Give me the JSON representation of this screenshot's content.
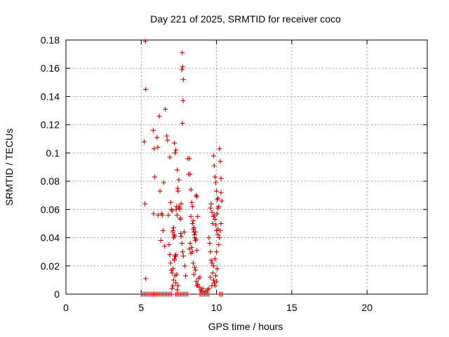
{
  "chart_data": {
    "type": "scatter",
    "title": "Day 221 of 2025, SRMTID for receiver coco",
    "xlabel": "GPS time / hours",
    "ylabel": "SRMTID / TECUs",
    "xlim": [
      0,
      24
    ],
    "ylim": [
      0,
      0.18
    ],
    "xticks": [
      0,
      5,
      10,
      15,
      20
    ],
    "xtick_labels": [
      "0",
      "5",
      "10",
      "15",
      "20"
    ],
    "yticks": [
      0,
      0.02,
      0.04,
      0.06,
      0.08,
      0.1,
      0.12,
      0.14,
      0.16,
      0.18
    ],
    "ytick_labels": [
      "0",
      "0.02",
      "0.04",
      "0.06",
      "0.08",
      "0.1",
      "0.12",
      "0.14",
      "0.16",
      "0.18"
    ],
    "grid": true,
    "marker": "+",
    "color": "#cc0000",
    "series": [
      {
        "name": "SRMTID",
        "x": [
          5.0,
          5.1,
          5.2,
          5.3,
          5.4,
          5.5,
          5.6,
          5.7,
          5.8,
          5.9,
          6.0,
          6.1,
          6.2,
          6.3,
          6.4,
          6.5,
          6.6,
          6.7,
          6.8,
          6.9,
          7.0,
          7.3,
          7.4,
          7.5,
          7.6,
          7.7,
          7.8,
          7.9,
          8.0,
          8.1,
          8.9,
          9.0,
          9.1,
          9.2,
          9.3,
          9.4,
          9.5,
          10.2,
          10.3,
          10.4,
          5.28,
          5.3,
          5.2,
          5.25,
          5.3,
          5.8,
          5.85,
          5.9,
          5.82,
          6.05,
          6.1,
          6.12,
          6.2,
          6.25,
          6.3,
          6.35,
          6.4,
          6.45,
          6.5,
          6.55,
          6.6,
          6.7,
          6.75,
          6.8,
          6.9,
          6.95,
          7.0,
          7.05,
          7.1,
          7.15,
          7.2,
          7.25,
          7.3,
          7.72,
          7.75,
          7.7,
          7.8,
          7.78,
          7.74,
          6.85,
          6.9,
          6.95,
          7.0,
          7.05,
          7.1,
          7.15,
          7.18,
          7.2,
          7.22,
          7.25,
          7.28,
          7.3,
          7.32,
          7.35,
          7.38,
          7.4,
          7.42,
          7.45,
          7.5,
          7.55,
          7.6,
          7.62,
          7.65,
          7.05,
          7.1,
          7.12,
          7.15,
          7.2,
          7.25,
          7.3,
          7.35,
          7.4,
          7.45,
          7.5,
          7.55,
          7.6,
          7.65,
          7.7,
          7.75,
          7.8,
          7.85,
          7.9,
          7.95,
          8.1,
          8.15,
          8.2,
          8.25,
          8.3,
          8.35,
          8.4,
          8.45,
          8.5,
          8.55,
          8.6,
          8.65,
          8.7,
          8.2,
          8.25,
          8.3,
          8.35,
          8.4,
          8.45,
          8.5,
          8.55,
          8.6,
          8.65,
          8.7,
          8.75,
          8.8,
          8.85,
          8.9,
          8.3,
          8.4,
          8.45,
          8.5,
          8.55,
          8.6,
          8.65,
          8.7,
          8.75,
          9.5,
          9.55,
          9.6,
          9.65,
          9.7,
          9.75,
          9.8,
          9.85,
          9.9,
          9.95,
          10.0,
          10.05,
          10.1,
          10.15,
          10.2,
          10.25,
          10.3,
          9.6,
          9.65,
          9.7,
          9.75,
          9.8,
          9.85,
          9.9,
          9.95,
          10.0,
          10.05,
          10.1,
          10.15,
          9.8,
          9.85,
          9.9,
          9.95,
          10.0,
          10.05,
          10.1,
          10.2,
          10.25,
          10.3,
          10.3,
          10.35,
          8.95,
          9.0,
          9.1,
          9.2,
          9.3,
          9.4,
          9.5,
          9.6,
          9.7,
          9.8,
          9.9,
          10.0,
          10.1
        ],
        "y": [
          0,
          0,
          0,
          0,
          0,
          0,
          0,
          0,
          0,
          0,
          0,
          0,
          0,
          0,
          0,
          0,
          0,
          0,
          0,
          0,
          0,
          0,
          0,
          0,
          0,
          0,
          0,
          0,
          0,
          0,
          0,
          0,
          0,
          0,
          0,
          0,
          0,
          0,
          0,
          0,
          0.179,
          0.145,
          0.108,
          0.064,
          0.011,
          0.116,
          0.103,
          0.083,
          0.057,
          0.111,
          0.104,
          0.056,
          0.126,
          0.073,
          0.038,
          0.057,
          0.056,
          0.045,
          0.079,
          0.034,
          0.131,
          0.112,
          0.109,
          0.056,
          0.097,
          0.065,
          0.06,
          0.059,
          0.045,
          0.047,
          0.107,
          0.1,
          0.102,
          0.171,
          0.161,
          0.159,
          0.152,
          0.137,
          0.121,
          0.035,
          0.028,
          0.022,
          0.017,
          0.015,
          0.044,
          0.04,
          0.042,
          0.025,
          0.041,
          0.013,
          0.027,
          0.008,
          0.06,
          0.062,
          0.056,
          0.088,
          0.075,
          0.073,
          0.081,
          0.06,
          0.053,
          0.043,
          0.064,
          0.004,
          0.006,
          0.018,
          0.01,
          0.024,
          0.027,
          0.028,
          0.014,
          0.003,
          0.006,
          0.062,
          0.061,
          0.054,
          0.041,
          0.036,
          0.03,
          0.027,
          0.044,
          0.02,
          0.013,
          0.096,
          0.085,
          0.096,
          0.085,
          0.074,
          0.065,
          0.062,
          0.052,
          0.047,
          0.04,
          0.044,
          0.039,
          0.031,
          0.032,
          0.036,
          0.029,
          0.033,
          0.03,
          0.022,
          0.014,
          0.019,
          0.017,
          0.009,
          0.006,
          0.007,
          0.011,
          0.005,
          0.012,
          0.055,
          0.05,
          0.046,
          0.044,
          0.042,
          0.038,
          0.07,
          0.069,
          0.055,
          0.04,
          0.036,
          0.03,
          0.024,
          0.022,
          0.015,
          0.01,
          0.008,
          0.006,
          0.013,
          0.009,
          0.018,
          0.046,
          0.035,
          0.04,
          0.045,
          0.05,
          0.061,
          0.064,
          0.058,
          0.05,
          0.055,
          0.056,
          0.053,
          0.049,
          0.045,
          0.057,
          0.061,
          0.062,
          0.098,
          0.091,
          0.083,
          0.079,
          0.073,
          0.067,
          0.068,
          0.103,
          0.094,
          0.082,
          0.072,
          0.066,
          0.003,
          0.002,
          0.004,
          0.001,
          0.002,
          0.003,
          0.004,
          0.012,
          0.006,
          0.02,
          0.025,
          0.03,
          0.042
        ]
      }
    ]
  }
}
